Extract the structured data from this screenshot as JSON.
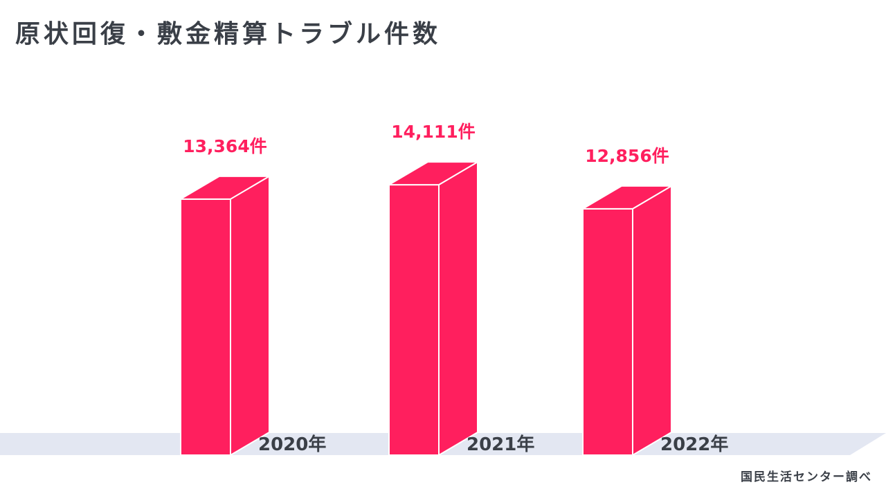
{
  "title": "原状回復・敷金精算トラブル件数",
  "source": "国民生活センター調べ",
  "colors": {
    "bar": "#ff1f5e",
    "bar_edge": "#ffffff",
    "value_text": "#ff1f5e",
    "text": "#3a3f47",
    "floor": "#e3e7f2"
  },
  "chart_data": {
    "type": "bar",
    "title": "原状回復・敷金精算トラブル件数",
    "categories": [
      "2020年",
      "2021年",
      "2022年"
    ],
    "values": [
      13364,
      14111,
      12856
    ],
    "value_labels": [
      "13,364件",
      "14,111件",
      "12,856件"
    ],
    "unit": "件",
    "xlabel": "",
    "ylabel": "",
    "ylim": [
      0,
      15000
    ],
    "grid": false,
    "legend": "none"
  }
}
